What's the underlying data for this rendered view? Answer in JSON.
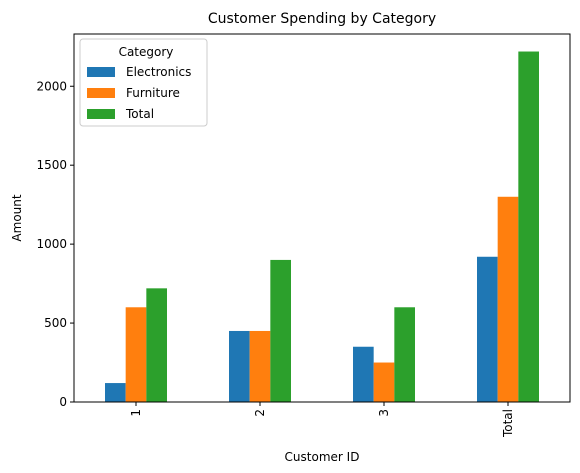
{
  "chart_data": {
    "type": "bar",
    "title": "Customer Spending by Category",
    "xlabel": "Customer ID",
    "ylabel": "Amount",
    "categories": [
      "1",
      "2",
      "3",
      "Total"
    ],
    "series": [
      {
        "name": "Electronics",
        "color": "#1f77b4",
        "values": [
          120,
          450,
          350,
          920
        ]
      },
      {
        "name": "Furniture",
        "color": "#ff7f0e",
        "values": [
          600,
          450,
          250,
          1300
        ]
      },
      {
        "name": "Total",
        "color": "#2ca02c",
        "values": [
          720,
          900,
          600,
          2220
        ]
      }
    ],
    "ylim": [
      0,
      2331
    ],
    "yticks": [
      0,
      500,
      1000,
      1500,
      2000
    ],
    "xtick_rotation": 90,
    "grid": false,
    "legend": {
      "title": "Category",
      "position": "upper-left"
    }
  }
}
